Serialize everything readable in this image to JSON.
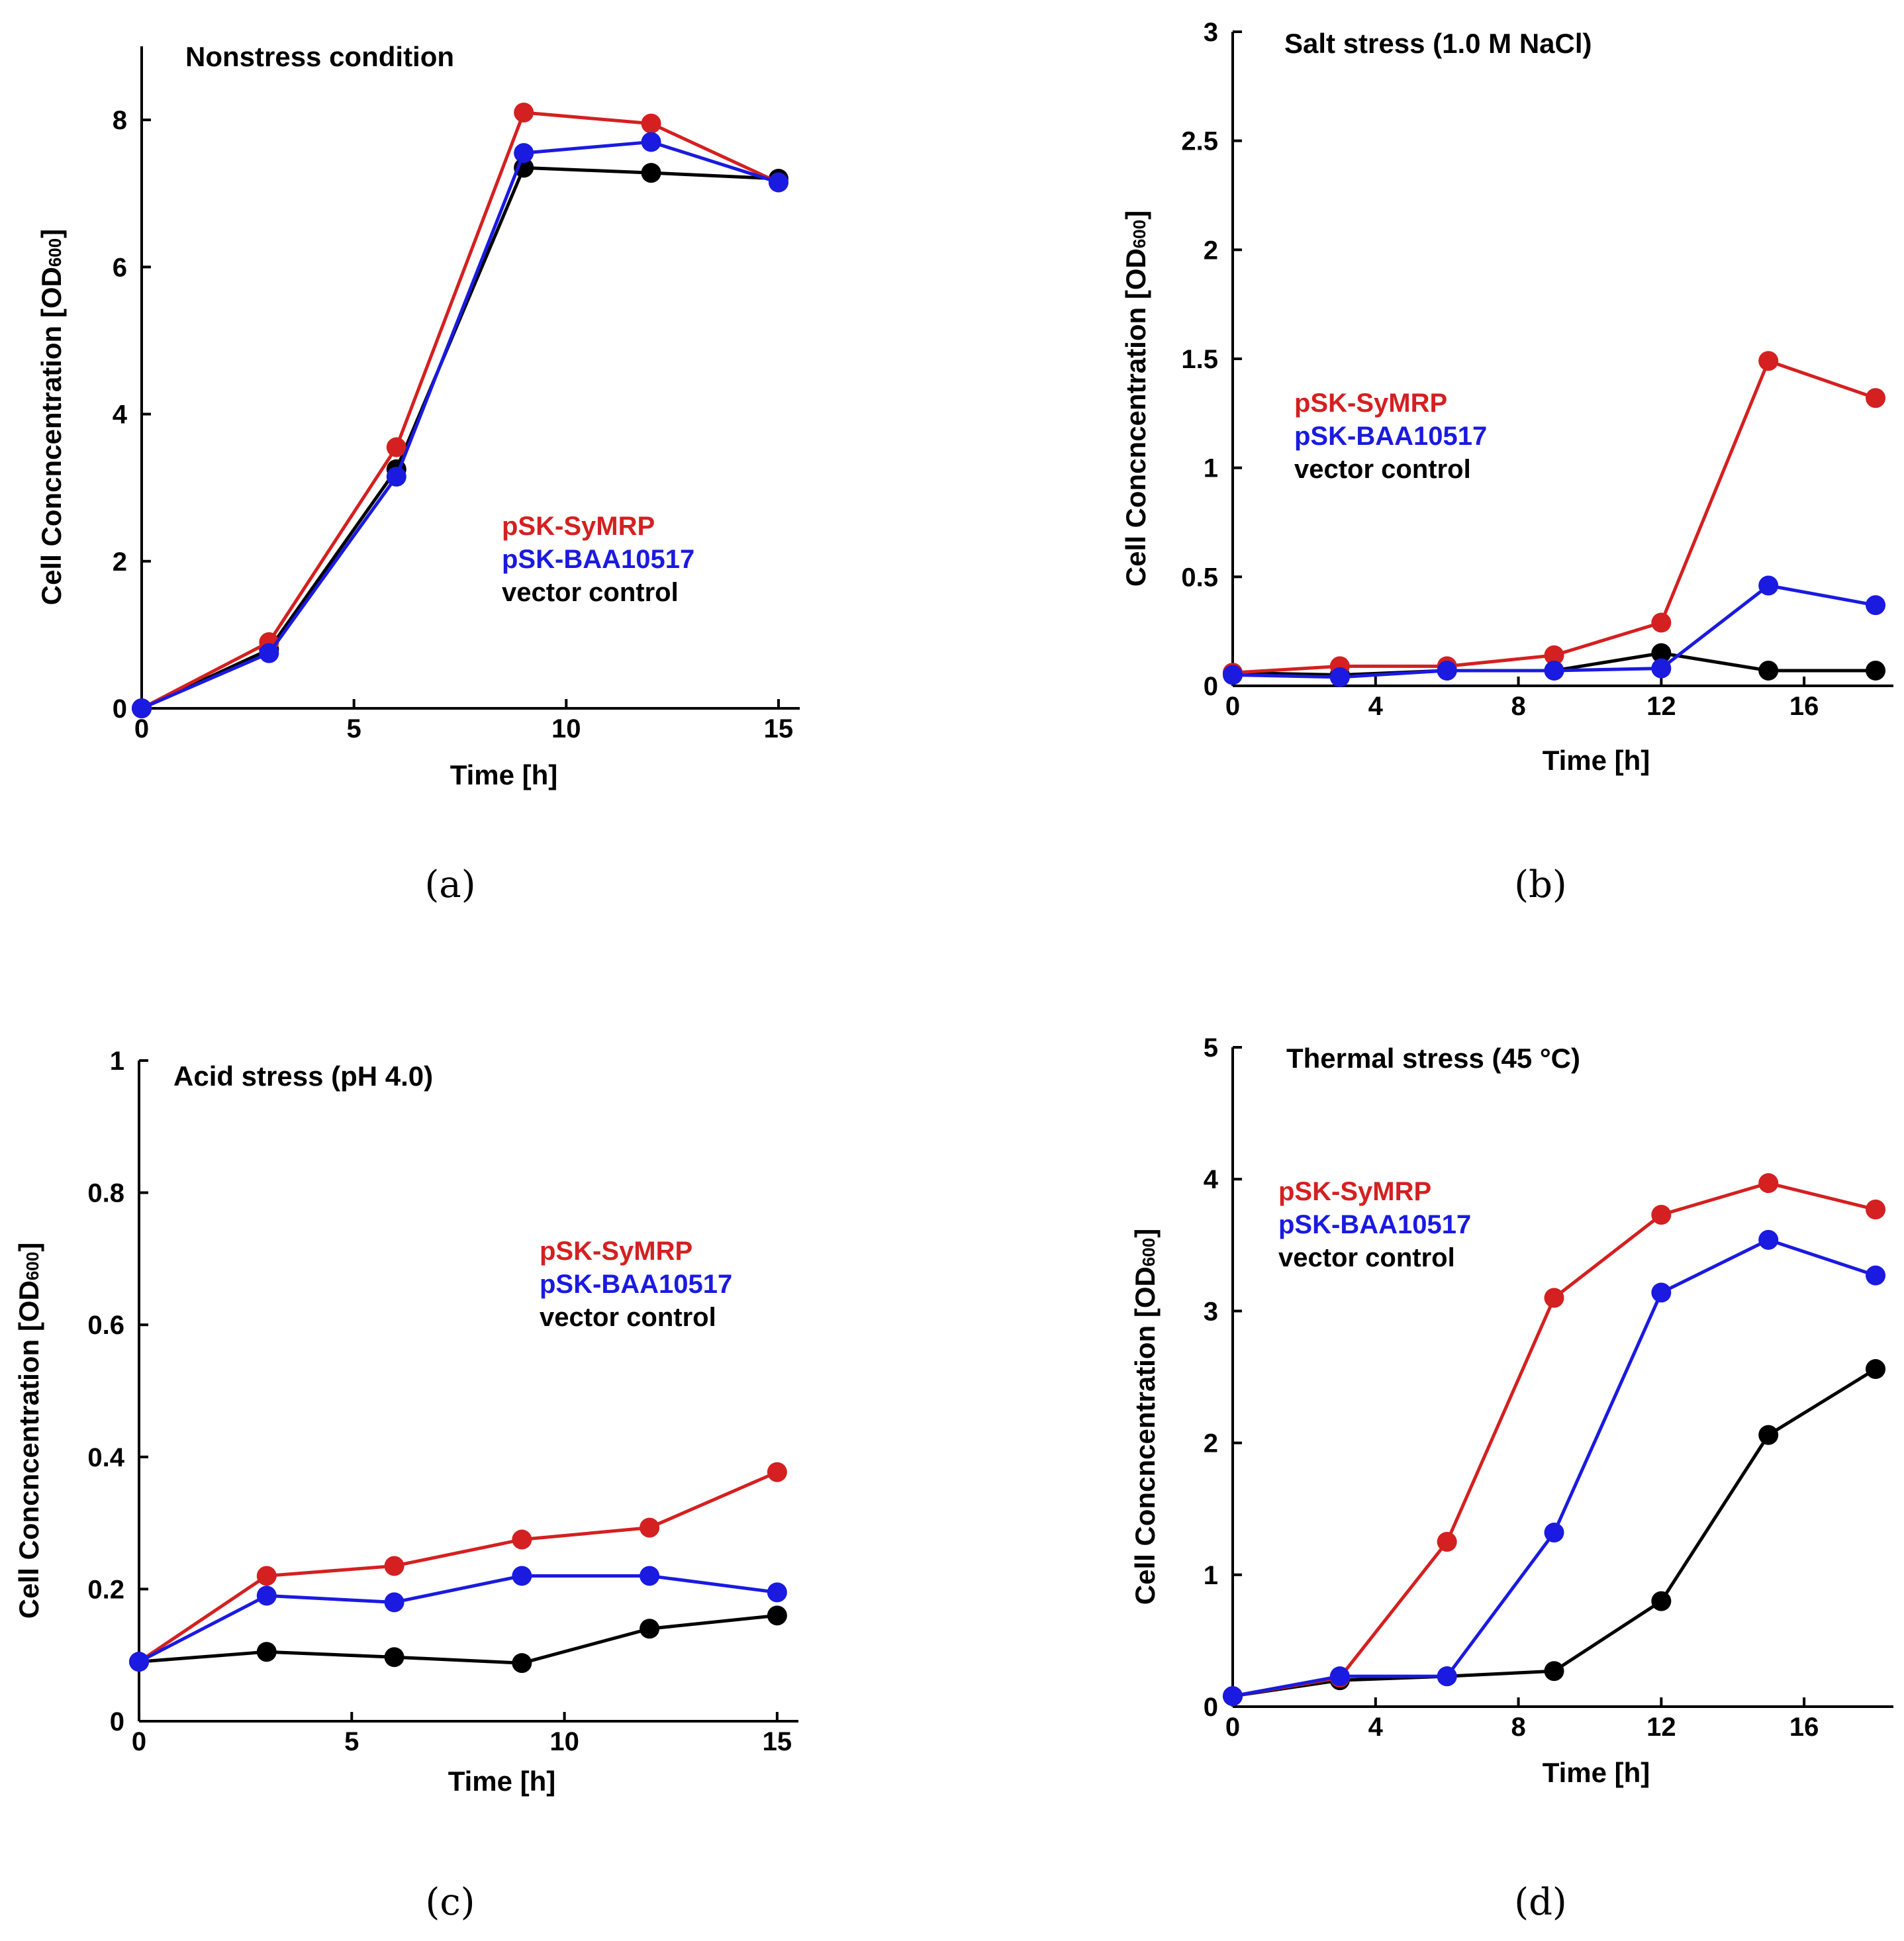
{
  "colors": {
    "pSK-SyMRP": "#d42020",
    "pSK-BAA10517": "#1a1ae0",
    "vector control": "#000000"
  },
  "chart_data": [
    {
      "type": "line",
      "panel_label": "(a)",
      "title": "Nonstress condition",
      "xlabel": "Time [h]",
      "ylabel": "Cell Concncentration [OD",
      "ylabel_sub": "600",
      "ylabel_end": "]",
      "xlim": [
        0,
        15.5
      ],
      "ylim": [
        0,
        9
      ],
      "xticks": [
        0,
        5,
        10,
        15
      ],
      "xtick_labels": [
        "0",
        "5",
        "10",
        "15"
      ],
      "yticks": [
        0,
        2,
        4,
        6,
        8
      ],
      "ytick_labels": [
        "0",
        "2",
        "4",
        "6",
        "8"
      ],
      "x": [
        0,
        3,
        6,
        9,
        12,
        15
      ],
      "legend": [
        "pSK-SyMRP",
        "pSK-BAA10517",
        "vector control"
      ],
      "series": [
        {
          "name": "vector control",
          "values": [
            0,
            0.8,
            3.25,
            7.35,
            7.28,
            7.2
          ]
        },
        {
          "name": "pSK-SyMRP",
          "values": [
            0,
            0.9,
            3.55,
            8.1,
            7.95,
            7.15
          ]
        },
        {
          "name": "pSK-BAA10517",
          "values": [
            0,
            0.75,
            3.15,
            7.55,
            7.7,
            7.15
          ]
        }
      ]
    },
    {
      "type": "line",
      "panel_label": "(b)",
      "title": "Salt stress (1.0 M NaCl)",
      "xlabel": "Time [h]",
      "ylabel": "Cell Concncentration [OD",
      "ylabel_sub": "600",
      "ylabel_end": "]",
      "xlim": [
        0,
        18.5
      ],
      "ylim": [
        0,
        3
      ],
      "xticks": [
        0,
        4,
        8,
        12,
        16
      ],
      "xtick_labels": [
        "0",
        "4",
        "8",
        "12",
        "16"
      ],
      "yticks": [
        0,
        0.5,
        1,
        1.5,
        2,
        2.5,
        3
      ],
      "ytick_labels": [
        "0",
        "0.5",
        "1",
        "1.5",
        "2",
        "2.5",
        "3"
      ],
      "x": [
        0,
        3,
        6,
        9,
        12,
        15,
        18
      ],
      "legend": [
        "pSK-SyMRP",
        "pSK-BAA10517",
        "vector control"
      ],
      "series": [
        {
          "name": "vector control",
          "values": [
            0.06,
            0.05,
            0.07,
            0.07,
            0.15,
            0.07,
            0.07
          ]
        },
        {
          "name": "pSK-SyMRP",
          "values": [
            0.06,
            0.09,
            0.09,
            0.14,
            0.29,
            1.49,
            1.32
          ]
        },
        {
          "name": "pSK-BAA10517",
          "values": [
            0.05,
            0.04,
            0.07,
            0.07,
            0.08,
            0.46,
            0.37
          ]
        }
      ]
    },
    {
      "type": "line",
      "panel_label": "(c)",
      "title": "Acid stress (pH 4.0)",
      "xlabel": "Time [h]",
      "ylabel": "Cell Concncentration [OD",
      "ylabel_sub": "600",
      "ylabel_end": "]",
      "xlim": [
        0,
        15.5
      ],
      "ylim": [
        0,
        1
      ],
      "xticks": [
        0,
        5,
        10,
        15
      ],
      "xtick_labels": [
        "0",
        "5",
        "10",
        "15"
      ],
      "yticks": [
        0,
        0.2,
        0.4,
        0.6,
        0.8,
        1
      ],
      "ytick_labels": [
        "0",
        "0.2",
        "0.4",
        "0.6",
        "0.8",
        "1"
      ],
      "x": [
        0,
        3,
        6,
        9,
        12,
        15
      ],
      "legend": [
        "pSK-SyMRP",
        "pSK-BAA10517",
        "vector control"
      ],
      "series": [
        {
          "name": "vector control",
          "values": [
            0.09,
            0.105,
            0.097,
            0.088,
            0.14,
            0.16
          ]
        },
        {
          "name": "pSK-SyMRP",
          "values": [
            0.09,
            0.22,
            0.235,
            0.275,
            0.293,
            0.377
          ]
        },
        {
          "name": "pSK-BAA10517",
          "values": [
            0.09,
            0.19,
            0.18,
            0.22,
            0.22,
            0.195
          ]
        }
      ]
    },
    {
      "type": "line",
      "panel_label": "(d)",
      "title": "Thermal stress (45 °C)",
      "xlabel": "Time [h]",
      "ylabel": "Cell Concncentration [OD",
      "ylabel_sub": "600",
      "ylabel_end": "]",
      "xlim": [
        0,
        18.5
      ],
      "ylim": [
        0,
        5
      ],
      "xticks": [
        0,
        4,
        8,
        12,
        16
      ],
      "xtick_labels": [
        "0",
        "4",
        "8",
        "12",
        "16"
      ],
      "yticks": [
        0,
        1,
        2,
        3,
        4,
        5
      ],
      "ytick_labels": [
        "0",
        "1",
        "2",
        "3",
        "4",
        "5"
      ],
      "x": [
        0,
        3,
        6,
        9,
        12,
        15,
        18
      ],
      "legend": [
        "pSK-SyMRP",
        "pSK-BAA10517",
        "vector control"
      ],
      "series": [
        {
          "name": "vector control",
          "values": [
            0.08,
            0.2,
            0.23,
            0.27,
            0.8,
            2.06,
            2.56
          ]
        },
        {
          "name": "pSK-SyMRP",
          "values": [
            0.08,
            0.22,
            1.25,
            3.1,
            3.73,
            3.97,
            3.77
          ]
        },
        {
          "name": "pSK-BAA10517",
          "values": [
            0.08,
            0.23,
            0.23,
            1.32,
            3.14,
            3.54,
            3.27
          ]
        }
      ]
    }
  ]
}
